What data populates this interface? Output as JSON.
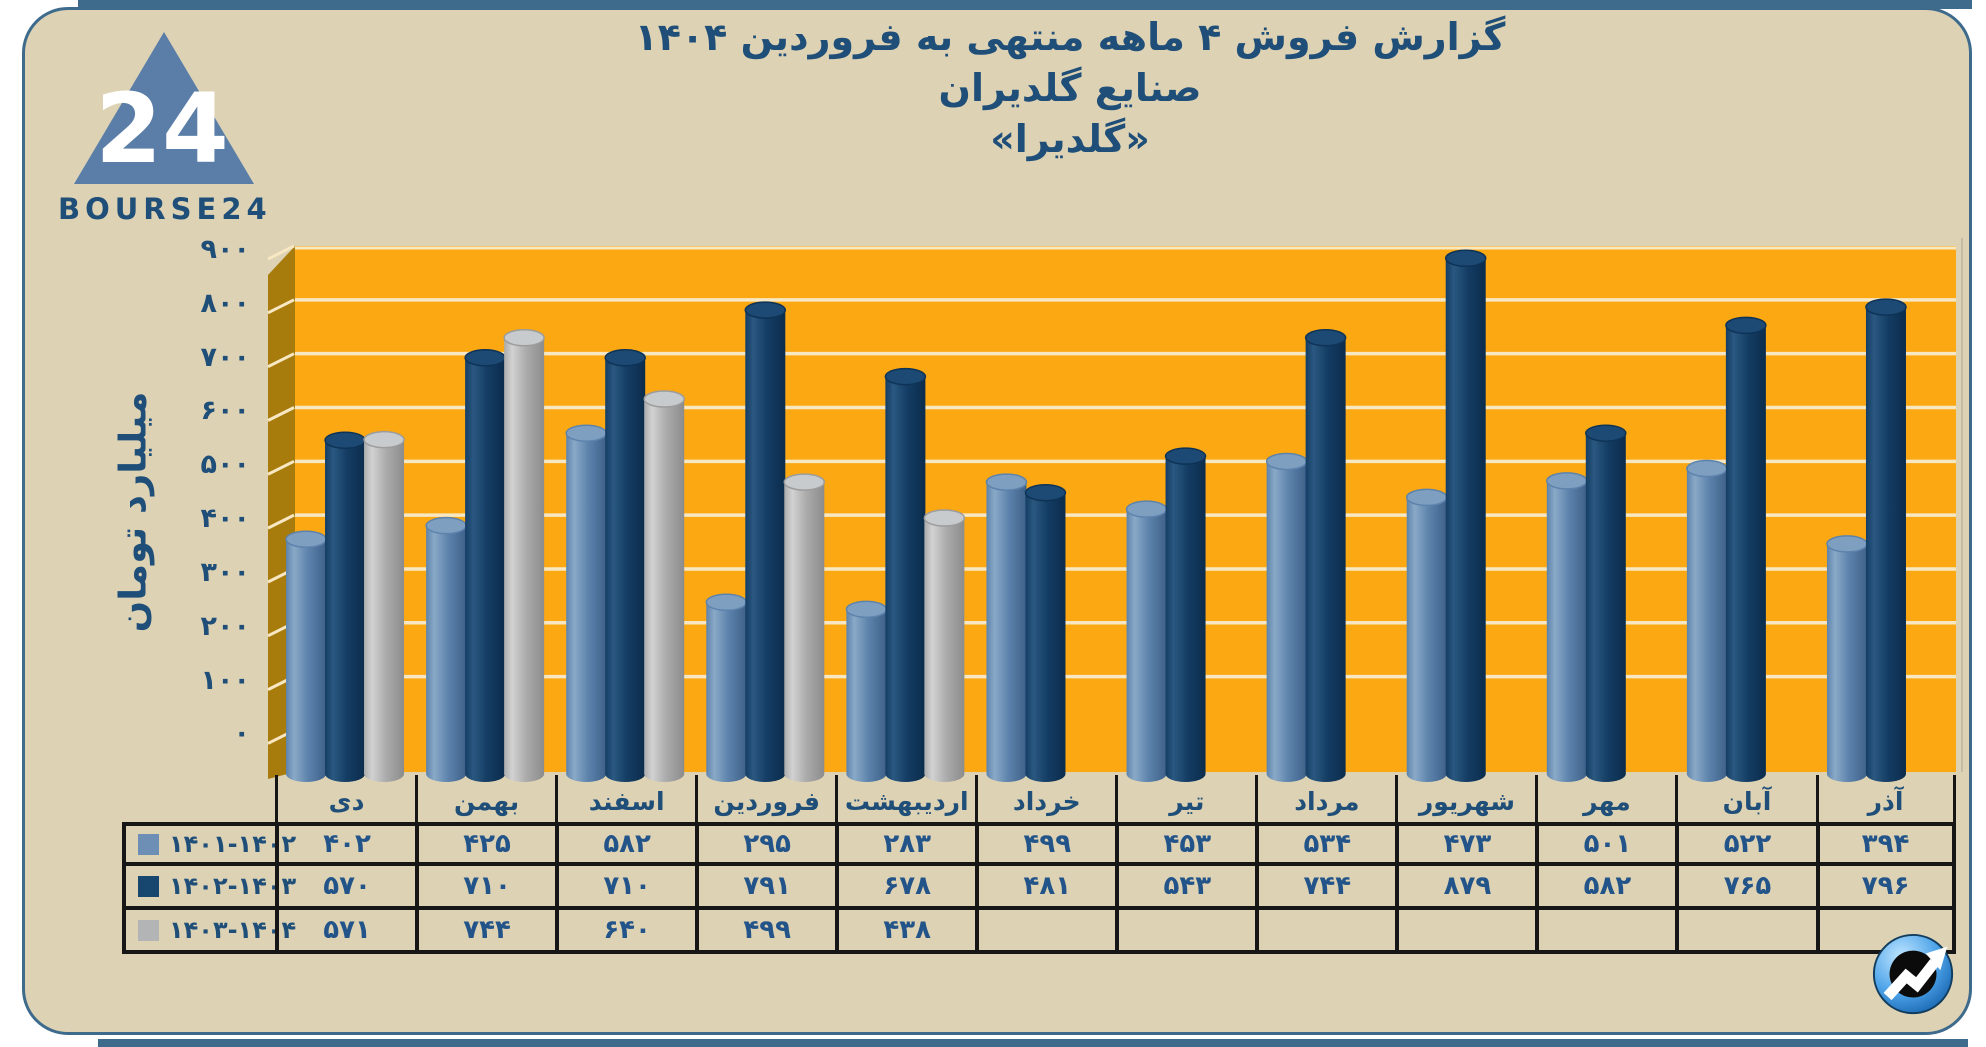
{
  "brand": {
    "name": "BOURSE24",
    "logo_number": "24"
  },
  "title_lines": [
    "گزارش فروش ۴ ماهه منتهی به فروردین ۱۴۰۴",
    "صنایع گلدیران",
    "«گلدیرا»"
  ],
  "colors": {
    "frame_blue": "#3E6A8C",
    "panel_beige": "#DDD3B4",
    "plot_orange": "#FBA813",
    "wall_gold": "#A87C0C",
    "gridline_cream": "#F7E7C3",
    "heading_blue": "#1F4E79",
    "table_text_blue": "#235489",
    "table_border_black": "#161616",
    "logo_triangle_blue": "#5A7EA7"
  },
  "chart_data": {
    "type": "bar",
    "title": "گزارش فروش ۴ ماهه منتهی به فروردین ۱۴۰۴ - صنایع گلدیران «گلدیرا»",
    "xlabel": "",
    "ylabel": "میلیارد تومان",
    "ylim": [
      0,
      900
    ],
    "ytick_step": 100,
    "ytick_labels_fa": [
      "۹۰۰",
      "۸۰۰",
      "۷۰۰",
      "۶۰۰",
      "۵۰۰",
      "۴۰۰",
      "۳۰۰",
      "۲۰۰",
      "۱۰۰",
      "۰"
    ],
    "grid": true,
    "legend_position": "table-rows-bottom-left",
    "categories": [
      "دی",
      "بهمن",
      "اسفند",
      "فروردین",
      "اردیبهشت",
      "خرداد",
      "تیر",
      "مرداد",
      "شهریور",
      "مهر",
      "آبان",
      "آذر"
    ],
    "series": [
      {
        "name": "۱۴۰۱-۱۴۰۲",
        "color": "#6D8FB5",
        "shade": {
          "light": "#8AA9C7",
          "mid": "#5D83AC",
          "dark": "#3E6189",
          "cap": "#7E9FC0",
          "rim": "#5D83AC"
        },
        "values": [
          402,
          425,
          582,
          295,
          283,
          499,
          453,
          534,
          473,
          501,
          522,
          394
        ],
        "values_fa": [
          "۴۰۲",
          "۴۲۵",
          "۵۸۲",
          "۲۹۵",
          "۲۸۳",
          "۴۹۹",
          "۴۵۳",
          "۵۳۴",
          "۴۷۳",
          "۵۰۱",
          "۵۲۲",
          "۳۹۴"
        ]
      },
      {
        "name": "۱۴۰۲-۱۴۰۳",
        "color": "#17466F",
        "shade": {
          "light": "#2A5880",
          "mid": "#143D64",
          "dark": "#0B2C4C",
          "cap": "#1C4A74",
          "rim": "#0E3356"
        },
        "values": [
          570,
          710,
          710,
          791,
          678,
          481,
          543,
          744,
          879,
          582,
          765,
          796
        ],
        "values_fa": [
          "۵۷۰",
          "۷۱۰",
          "۷۱۰",
          "۷۹۱",
          "۶۷۸",
          "۴۸۱",
          "۵۴۳",
          "۷۴۴",
          "۸۷۹",
          "۵۸۲",
          "۷۶۵",
          "۷۹۶"
        ]
      },
      {
        "name": "۱۴۰۳-۱۴۰۴",
        "color": "#B2B4B6",
        "shade": {
          "light": "#D2D2D2",
          "mid": "#ABABAB",
          "dark": "#8C8C8C",
          "cap": "#C8CBCD",
          "rim": "#9C9C9C"
        },
        "values": [
          571,
          744,
          640,
          499,
          438,
          null,
          null,
          null,
          null,
          null,
          null,
          null
        ],
        "values_fa": [
          "۵۷۱",
          "۷۴۴",
          "۶۴۰",
          "۴۹۹",
          "۴۳۸",
          "",
          "",
          "",
          "",
          "",
          "",
          ""
        ]
      }
    ]
  }
}
